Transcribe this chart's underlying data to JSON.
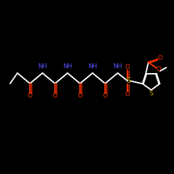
{
  "background_color": "#000000",
  "figure_size": [
    2.5,
    2.5
  ],
  "dpi": 100,
  "bond_color": "#ffffff",
  "nh_color": "#5555ff",
  "oxygen_color": "#ff3300",
  "sulfur_color": "#ccaa00",
  "font_size": 6.5,
  "xlim": [
    0,
    10
  ],
  "ylim": [
    0,
    10
  ]
}
